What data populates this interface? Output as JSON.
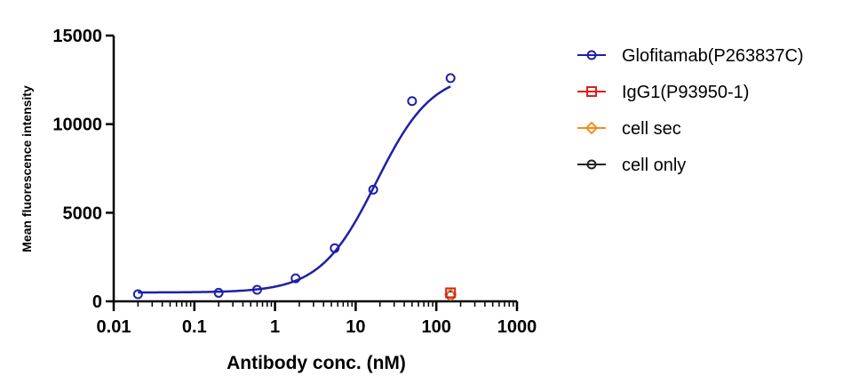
{
  "chart_data": {
    "type": "scatter",
    "title": "",
    "xlabel": "Antibody conc. (nM)",
    "ylabel": "Mean fluorescence intensity",
    "xscale": "log",
    "xlim": [
      0.01,
      1000
    ],
    "ylim": [
      0,
      15000
    ],
    "x_ticks": [
      0.01,
      0.1,
      1,
      10,
      100,
      1000
    ],
    "x_tick_labels": [
      "0.01",
      "0.1",
      "1",
      "10",
      "100",
      "1000"
    ],
    "y_ticks": [
      0,
      5000,
      10000,
      15000
    ],
    "y_tick_labels": [
      "0",
      "5000",
      "10000",
      "15000"
    ],
    "grid": false,
    "legend_position": "right",
    "series": [
      {
        "name": "Glofitamab(P263837C)",
        "color": "#1f1fa8",
        "marker": "circle",
        "fit": "sigmoid",
        "x": [
          0.02,
          0.2,
          0.6,
          1.8,
          5.5,
          16.5,
          50,
          150
        ],
        "y": [
          400,
          480,
          650,
          1300,
          3000,
          6300,
          11300,
          12600
        ]
      },
      {
        "name": "IgG1(P93950-1)",
        "color": "#e01e1e",
        "marker": "square",
        "x": [
          150
        ],
        "y": [
          480
        ]
      },
      {
        "name": "cell sec",
        "color": "#f0901e",
        "marker": "diamond",
        "x": [
          150
        ],
        "y": [
          380
        ]
      },
      {
        "name": "cell only",
        "color": "#222222",
        "marker": "circle",
        "x": [
          150
        ],
        "y": [
          340
        ]
      }
    ]
  }
}
